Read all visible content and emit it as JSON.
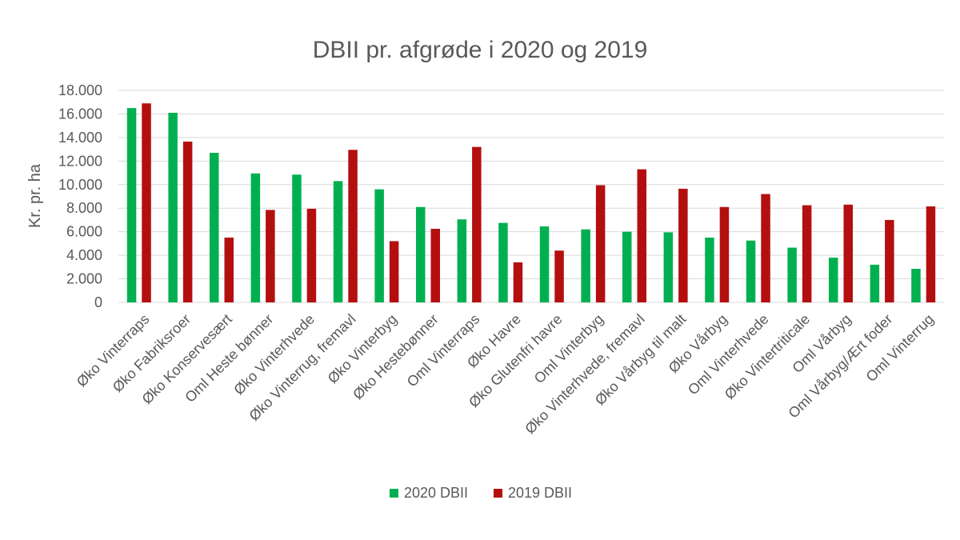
{
  "chart_data": {
    "type": "bar",
    "title": "DBII pr. afgrøde i 2020 og 2019",
    "xlabel": "",
    "ylabel": "Kr. pr. ha",
    "ylim": [
      0,
      18000
    ],
    "yticks": [
      0,
      2000,
      4000,
      6000,
      8000,
      10000,
      12000,
      14000,
      16000,
      18000
    ],
    "ytick_labels": [
      "0",
      "2.000",
      "4.000",
      "6.000",
      "8.000",
      "10.000",
      "12.000",
      "14.000",
      "16.000",
      "18.000"
    ],
    "grid": true,
    "legend_position": "bottom",
    "categories": [
      "Øko Vinterraps",
      "Øko Fabriksroer",
      "Øko Konservesært",
      "Oml Heste bønner",
      "Øko Vinterhvede",
      "Øko Vinterrug, fremavl",
      "Øko Vinterbyg",
      "Øko Hestebønner",
      "Oml Vinterraps",
      "Øko Havre",
      "Øko Glutenfri havre",
      "Oml Vinterbyg",
      "Øko Vinterhvede, fremavl",
      "Øko Vårbyg til malt",
      "Øko Vårbyg",
      "Oml Vinterhvede",
      "Øko Vintertriticale",
      "Oml Vårbyg",
      "Oml Vårbyg/Ært foder",
      "Oml Vinterrug"
    ],
    "series": [
      {
        "name": "2020 DBII",
        "color": "#00b050",
        "values": [
          16500,
          16100,
          12700,
          10950,
          10850,
          10300,
          9600,
          8100,
          7050,
          6750,
          6450,
          6200,
          6000,
          5950,
          5500,
          5250,
          4650,
          3800,
          3200,
          2850
        ]
      },
      {
        "name": "2019 DBII",
        "color": "#b40f0f",
        "values": [
          16900,
          13650,
          5500,
          7850,
          7950,
          12950,
          5200,
          6250,
          13200,
          3400,
          4400,
          9950,
          11300,
          9650,
          8100,
          9200,
          8250,
          8300,
          7000,
          8150
        ]
      }
    ]
  }
}
